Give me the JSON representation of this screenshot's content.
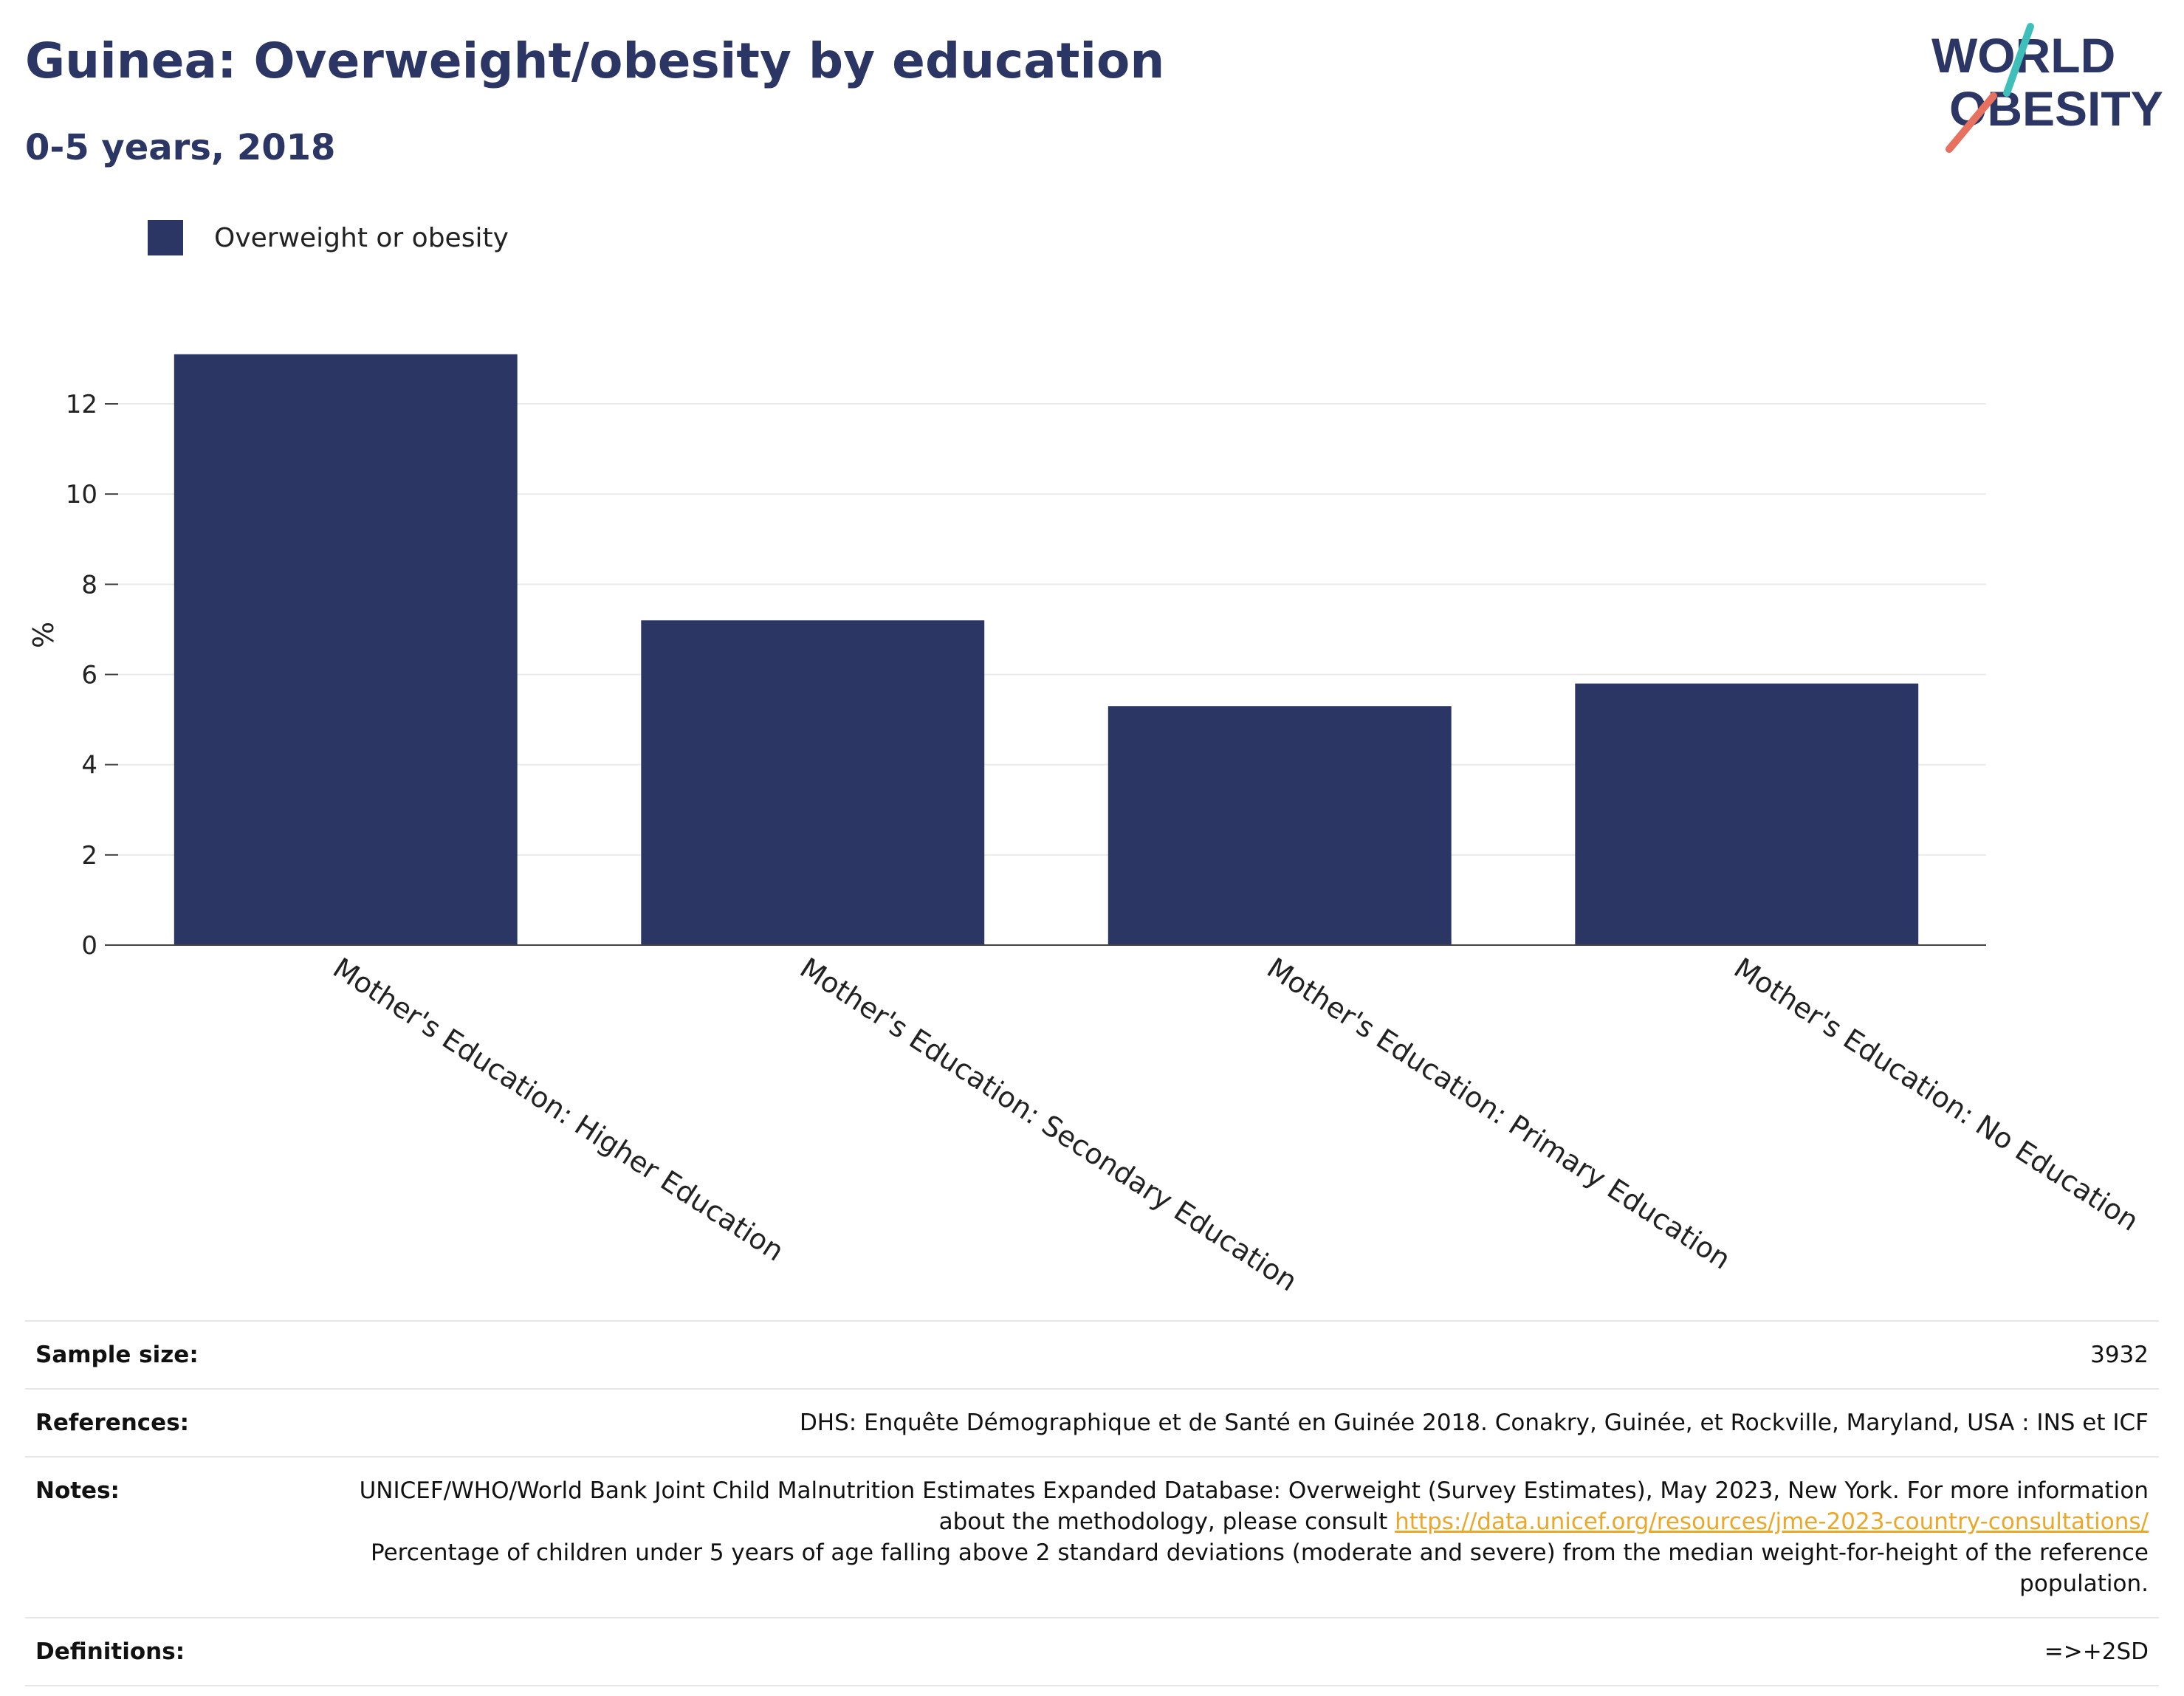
{
  "header": {
    "title": "Guinea: Overweight/obesity by education",
    "subtitle": "0-5 years, 2018"
  },
  "logo": {
    "line1": "WORLD",
    "line2": "OBESITY"
  },
  "colors": {
    "bar": "#2b3664",
    "title": "#2b3664",
    "link": "#e9a829",
    "logo_teal": "#3fbfb9",
    "logo_coral": "#e8705f"
  },
  "chart_data": {
    "type": "bar",
    "categories": [
      "Mother's Education: Higher Education",
      "Mother's Education: Secondary Education",
      "Mother's Education: Primary Education",
      "Mother's Education: No Education"
    ],
    "series": [
      {
        "name": "Overweight or obesity",
        "values": [
          13.1,
          7.2,
          5.3,
          5.8
        ]
      }
    ],
    "ylabel": "%",
    "xlabel": "",
    "ylim": [
      0,
      14
    ],
    "yticks": [
      0,
      2,
      4,
      6,
      8,
      10,
      12
    ],
    "grid": true,
    "legend_position": "top-left"
  },
  "info": {
    "sample_size_label": "Sample size:",
    "sample_size_value": "3932",
    "references_label": "References:",
    "references_value": "DHS: Enquête Démographique et de Santé en Guinée 2018. Conakry, Guinée, et Rockville, Maryland, USA : INS et ICF",
    "notes_label": "Notes:",
    "notes_text_1": "UNICEF/WHO/World Bank Joint Child Malnutrition Estimates Expanded Database: Overweight (Survey Estimates), May 2023, New York. For more information about the methodology, please consult ",
    "notes_link": "https://data.unicef.org/resources/jme-2023-country-consultations/",
    "notes_text_2": "Percentage of children under 5 years of age falling above 2 standard deviations (moderate and severe) from the median weight-for-height of the reference population.",
    "definitions_label": "Definitions:",
    "definitions_value": "=>+2SD"
  }
}
